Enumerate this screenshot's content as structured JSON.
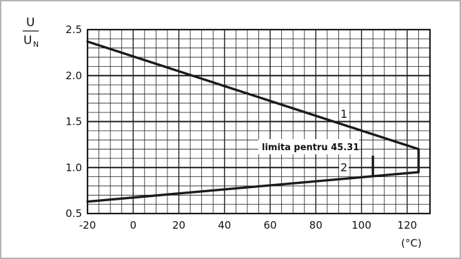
{
  "chart_data": {
    "type": "line",
    "title": "",
    "xlabel": "",
    "x_unit": "(°C)",
    "ylabel_num": "U",
    "ylabel_den": "U",
    "ylabel_den_sub": "N",
    "xlim": [
      -20,
      130
    ],
    "ylim": [
      0.5,
      2.5
    ],
    "x_ticks": [
      -20,
      0,
      20,
      40,
      60,
      80,
      100,
      120
    ],
    "x_tick_labels": [
      "-20",
      "0",
      "20",
      "40",
      "60",
      "80",
      "100",
      "120"
    ],
    "y_ticks": [
      0.5,
      1.0,
      1.5,
      2.0,
      2.5
    ],
    "y_tick_labels": [
      "0.5",
      "1.0",
      "1.5",
      "2.0",
      "2.5"
    ],
    "grid": true,
    "series": [
      {
        "name": "1",
        "points": [
          [
            -20,
            2.37
          ],
          [
            125,
            1.2
          ]
        ]
      },
      {
        "name": "2",
        "points": [
          [
            -20,
            0.63
          ],
          [
            125,
            0.95
          ]
        ]
      }
    ],
    "vertical_segments": [
      {
        "x": 125,
        "y_from": 0.95,
        "y_to": 1.2
      },
      {
        "x": 105,
        "y_from": 0.9,
        "y_to": 1.13
      }
    ],
    "annotation": {
      "text": "limita pentru 45.31",
      "x": 105,
      "y": 1.23
    },
    "line_color": "#1a1a1a",
    "grid_color": "#1a1a1a"
  }
}
